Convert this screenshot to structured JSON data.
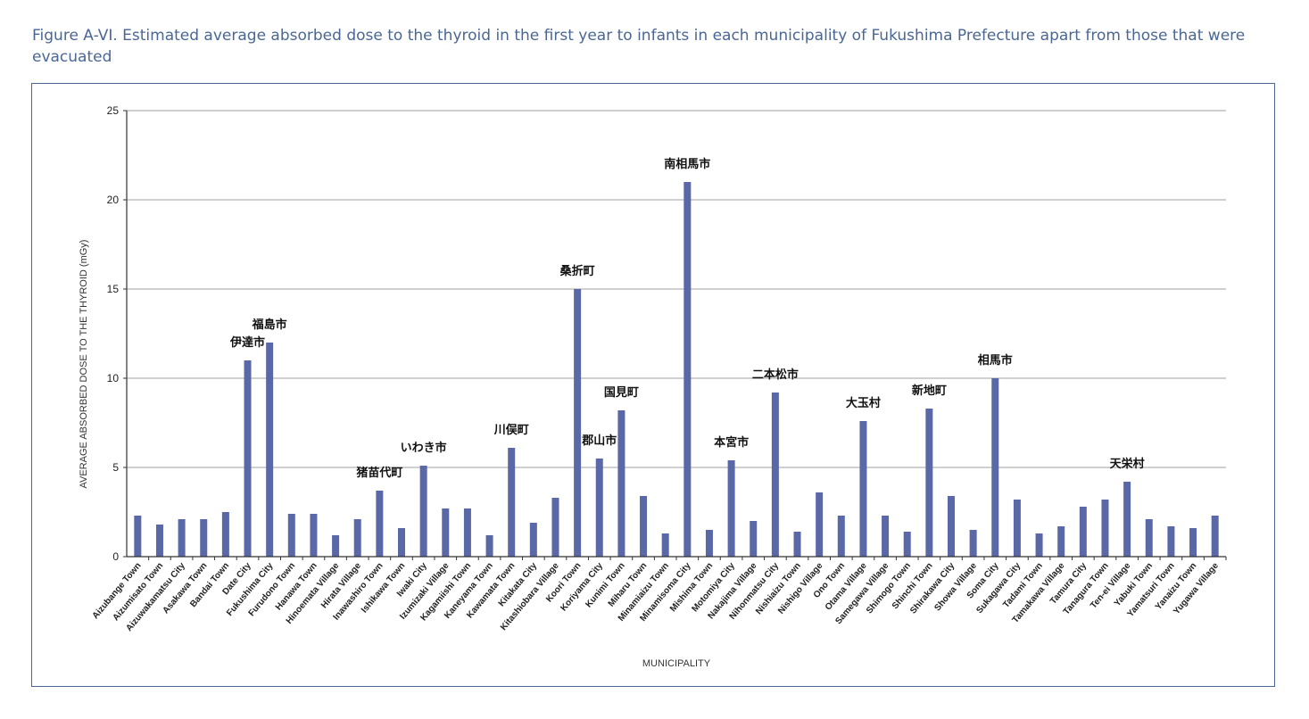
{
  "caption": "Figure A-VI. Estimated average absorbed dose to the thyroid in the first year to infants in each municipality of Fukushima Prefecture apart from those that were evacuated",
  "chart_data": {
    "type": "bar",
    "title": "",
    "xlabel": "MUNICIPALITY",
    "ylabel": "AVERAGE ABSORBED DOSE TO THE THYROID (mGy)",
    "ylim": [
      0,
      25
    ],
    "yticks": [
      0,
      5,
      10,
      15,
      20,
      25
    ],
    "grid": true,
    "bar_color": "#5a68a8",
    "categories": [
      "Aizubange Town",
      "Aizumisato Town",
      "Aizuwakamatsu City",
      "Asakawa Town",
      "Bandai Town",
      "Date City",
      "Fukushima City",
      "Furudono Town",
      "Hanawa Town",
      "Hinoemata Village",
      "Hirata Village",
      "Inawashiro Town",
      "Ishikawa Town",
      "Iwaki City",
      "Izumizaki Village",
      "Kagamiishi Town",
      "Kaneyama Town",
      "Kawamata Town",
      "Kitakata City",
      "Kitashiobara Village",
      "Koori Town",
      "Koriyama City",
      "Kunimi Town",
      "Miharu Town",
      "Minamiaizu Town",
      "Minamisoma City",
      "Mishima Town",
      "Motomiya City",
      "Nakajima Village",
      "Nihonmatsu City",
      "Nishiaizu Town",
      "Nishigo Village",
      "Ono Town",
      "Otama Village",
      "Samegawa Village",
      "Shimogo Town",
      "Shinchi Town",
      "Shirakawa City",
      "Showa Village",
      "Soma City",
      "Sukagawa City",
      "Tadami Town",
      "Tamakawa Village",
      "Tamura City",
      "Tanagura Town",
      "Ten-ei Village",
      "Yabuki Town",
      "Yamatsuri Town",
      "Yanaizu Town",
      "Yugawa Village"
    ],
    "values": [
      2.3,
      1.8,
      2.1,
      2.1,
      2.5,
      11.0,
      12.0,
      2.4,
      2.4,
      1.2,
      2.1,
      3.7,
      1.6,
      5.1,
      2.7,
      2.7,
      1.2,
      6.1,
      1.9,
      3.3,
      15.0,
      5.5,
      8.2,
      3.4,
      1.3,
      21.0,
      1.5,
      5.4,
      2.0,
      9.2,
      1.4,
      3.6,
      2.3,
      7.6,
      2.3,
      1.4,
      8.3,
      3.4,
      1.5,
      10.0,
      3.2,
      1.3,
      1.7,
      2.8,
      3.2,
      4.2,
      2.1,
      1.7,
      1.6,
      2.3
    ],
    "annotations": [
      {
        "index": 5,
        "text": "伊達市"
      },
      {
        "index": 6,
        "text": "福島市"
      },
      {
        "index": 11,
        "text": "猪苗代町"
      },
      {
        "index": 13,
        "text": "いわき市"
      },
      {
        "index": 17,
        "text": "川俣町"
      },
      {
        "index": 20,
        "text": "桑折町"
      },
      {
        "index": 21,
        "text": "郡山市"
      },
      {
        "index": 22,
        "text": "国見町"
      },
      {
        "index": 25,
        "text": "南相馬市"
      },
      {
        "index": 27,
        "text": "本宮市"
      },
      {
        "index": 29,
        "text": "二本松市"
      },
      {
        "index": 33,
        "text": "大玉村"
      },
      {
        "index": 36,
        "text": "新地町"
      },
      {
        "index": 39,
        "text": "相馬市"
      },
      {
        "index": 45,
        "text": "天栄村"
      }
    ]
  }
}
